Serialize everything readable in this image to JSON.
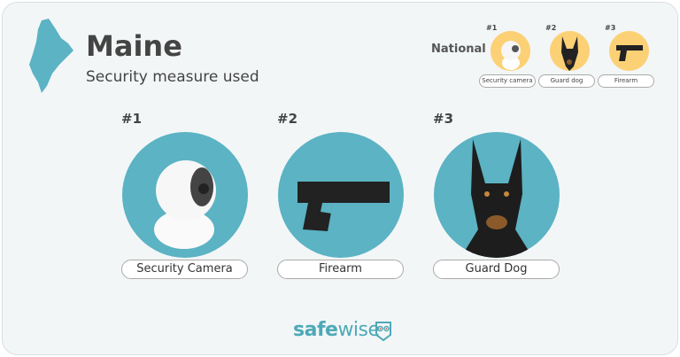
{
  "header": {
    "title": "Maine",
    "subtitle": "Security measure used"
  },
  "national": {
    "label": "National",
    "items": [
      {
        "rank": "#1",
        "label": "Security camera",
        "icon": "security-camera"
      },
      {
        "rank": "#2",
        "label": "Guard dog",
        "icon": "guard-dog"
      },
      {
        "rank": "#3",
        "label": "Firearm",
        "icon": "firearm"
      }
    ]
  },
  "state": {
    "items": [
      {
        "rank": "#1",
        "label": "Security Camera",
        "icon": "security-camera"
      },
      {
        "rank": "#2",
        "label": "Firearm",
        "icon": "firearm"
      },
      {
        "rank": "#3",
        "label": "Guard Dog",
        "icon": "guard-dog"
      }
    ]
  },
  "logo": {
    "part1": "safe",
    "part2": "wise"
  },
  "colors": {
    "teal": "#5bb3c4",
    "yellow": "#fcd176",
    "text": "#444444"
  }
}
